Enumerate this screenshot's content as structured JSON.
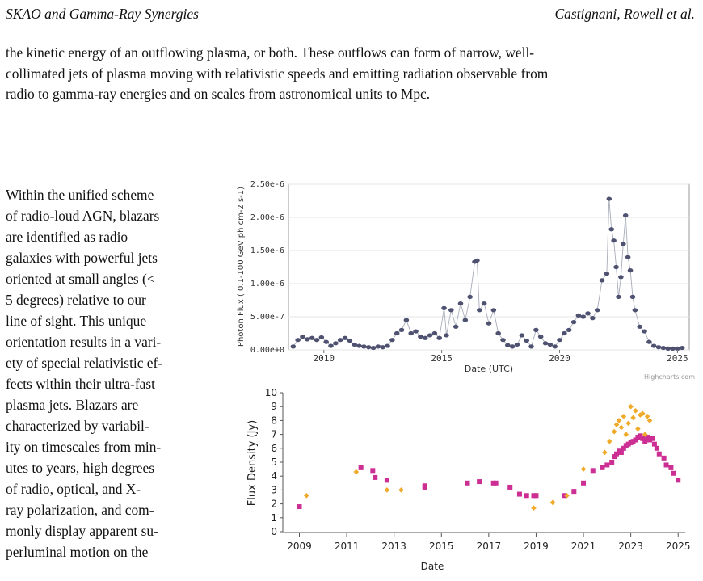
{
  "header": {
    "left": "SKAO and Gamma-Ray Synergies",
    "right": "Castignani, Rowell et al."
  },
  "top_paragraph": [
    "the kinetic energy of an outflowing plasma, or both.  These outflows can form of narrow, well-",
    "collimated jets of plasma moving with relativistic speeds and emitting radiation observable from",
    "radio to gamma-ray energies and on scales from astronomical units to Mpc."
  ],
  "left_column": [
    "Within the unified scheme",
    "of radio-loud AGN, blazars",
    "are   identified   as   radio",
    "galaxies with powerful jets",
    "oriented at small angles (<",
    "5 degrees) relative to our",
    "line of sight.  This unique",
    "orientation results in a vari-",
    "ety of special relativistic ef-",
    "fects within their ultra-fast",
    "plasma jets.   Blazars are",
    "characterized by variabil-",
    "ity on timescales from min-",
    "utes to years, high degrees",
    "of radio, optical, and X-",
    "ray polarization, and com-",
    "monly display apparent su-",
    "perluminal motion on the"
  ],
  "chart_data": [
    {
      "type": "line",
      "ylabel": "Photon Flux ( 0.1-100 GeV ph cm-2 s-1)",
      "xlabel": "Date (UTC)",
      "credit": "Highcharts.com",
      "xlim": [
        2008.5,
        2025.5
      ],
      "ylim": [
        0,
        2.5e-06
      ],
      "x_ticks": [
        "2010",
        "2015",
        "2020",
        "2025"
      ],
      "y_ticks": [
        "0.00e+0",
        "5.00e-7",
        "1.00e-6",
        "1.50e-6",
        "2.00e-6",
        "2.50e-6"
      ],
      "series": [
        {
          "x": [
            2008.7,
            2008.9,
            2009.1,
            2009.3,
            2009.5,
            2009.7,
            2009.9,
            2010.1,
            2010.3,
            2010.5,
            2010.7,
            2010.9,
            2011.1,
            2011.3,
            2011.5,
            2011.7,
            2011.9,
            2012.1,
            2012.3,
            2012.5,
            2012.7,
            2012.9,
            2013.1,
            2013.3,
            2013.5,
            2013.7,
            2013.9,
            2014.1,
            2014.3,
            2014.5,
            2014.7,
            2014.9,
            2015.1,
            2015.2,
            2015.4,
            2015.6,
            2015.8,
            2016.0,
            2016.2,
            2016.4,
            2016.5,
            2016.6,
            2016.8,
            2017.0,
            2017.2,
            2017.4,
            2017.6,
            2017.8,
            2018.0,
            2018.2,
            2018.4,
            2018.6,
            2018.8,
            2019.0,
            2019.2,
            2019.4,
            2019.6,
            2019.8,
            2020.0,
            2020.2,
            2020.4,
            2020.6,
            2020.8,
            2021.0,
            2021.2,
            2021.4,
            2021.6,
            2021.8,
            2022.0,
            2022.1,
            2022.2,
            2022.3,
            2022.4,
            2022.5,
            2022.6,
            2022.7,
            2022.8,
            2022.9,
            2023.0,
            2023.1,
            2023.2,
            2023.4,
            2023.6,
            2023.8,
            2024.0,
            2024.2,
            2024.4,
            2024.6,
            2024.8,
            2025.0,
            2025.2
          ],
          "values": [
            5e-08,
            1.5e-07,
            2e-07,
            1.6e-07,
            1.8e-07,
            1.5e-07,
            1.9e-07,
            1.2e-07,
            6e-08,
            1e-07,
            1.5e-07,
            1.8e-07,
            1.4e-07,
            8e-08,
            6e-08,
            5e-08,
            4e-08,
            3e-08,
            5e-08,
            4e-08,
            6e-08,
            1.5e-07,
            2.5e-07,
            3e-07,
            4.5e-07,
            2.5e-07,
            2.8e-07,
            2e-07,
            1.8e-07,
            2.2e-07,
            2.5e-07,
            1.8e-07,
            6.3e-07,
            2.2e-07,
            6e-07,
            3.5e-07,
            7e-07,
            4.5e-07,
            8e-07,
            1.33e-06,
            1.35e-06,
            6e-07,
            7e-07,
            4e-07,
            6e-07,
            2.5e-07,
            1.5e-07,
            7e-08,
            5e-08,
            8e-08,
            2.2e-07,
            1.4e-07,
            5e-08,
            3e-07,
            2e-07,
            1e-07,
            8e-08,
            5e-08,
            1.5e-07,
            2.5e-07,
            3e-07,
            4.2e-07,
            5.2e-07,
            5e-07,
            5.5e-07,
            4.8e-07,
            6e-07,
            1.05e-06,
            1.15e-06,
            2.28e-06,
            1.82e-06,
            1.65e-06,
            1.25e-06,
            8e-07,
            1.1e-06,
            1.6e-06,
            2.03e-06,
            1.4e-06,
            1.2e-06,
            8e-07,
            6e-07,
            3.5e-07,
            2.8e-07,
            1.2e-07,
            6e-08,
            4e-08,
            3e-08,
            2e-08,
            2e-08,
            2e-08,
            3e-08
          ]
        }
      ]
    },
    {
      "type": "scatter",
      "ylabel": "Flux Density (Jy)",
      "xlabel": "Date",
      "xlim": [
        2008.3,
        2025.3
      ],
      "ylim": [
        0,
        10
      ],
      "x_ticks": [
        "2009",
        "2011",
        "2013",
        "2015",
        "2017",
        "2019",
        "2021",
        "2023",
        "2025"
      ],
      "y_ticks": [
        "0",
        "1",
        "2",
        "3",
        "4",
        "5",
        "6",
        "7",
        "8",
        "9",
        "10"
      ],
      "series": [
        {
          "marker": "square",
          "color": "#cc2e93",
          "x": [
            2009.0,
            2011.6,
            2012.1,
            2012.2,
            2012.7,
            2014.3,
            2014.3,
            2016.1,
            2016.6,
            2017.2,
            2017.3,
            2017.9,
            2018.3,
            2018.6,
            2018.9,
            2019.0,
            2020.2,
            2020.6,
            2021.0,
            2021.4,
            2021.8,
            2022.0,
            2022.2,
            2022.3,
            2022.4,
            2022.5,
            2022.6,
            2022.7,
            2022.8,
            2022.9,
            2023.0,
            2023.1,
            2023.2,
            2023.3,
            2023.4,
            2023.5,
            2023.6,
            2023.7,
            2023.8,
            2023.9,
            2024.0,
            2024.1,
            2024.2,
            2024.4,
            2024.5,
            2024.7,
            2024.8,
            2025.0
          ],
          "y": [
            1.8,
            4.6,
            4.4,
            3.9,
            3.7,
            3.3,
            3.2,
            3.5,
            3.6,
            3.5,
            3.5,
            3.2,
            2.7,
            2.6,
            2.6,
            2.6,
            2.6,
            2.9,
            3.5,
            4.4,
            4.6,
            4.8,
            5.0,
            5.4,
            5.6,
            5.8,
            5.7,
            6.0,
            6.2,
            6.3,
            6.4,
            6.5,
            6.6,
            6.8,
            6.9,
            6.7,
            6.5,
            6.8,
            6.6,
            6.7,
            6.3,
            6.0,
            5.6,
            5.3,
            4.8,
            4.6,
            4.2,
            3.7
          ]
        },
        {
          "marker": "diamond",
          "color": "#f0aa2a",
          "x": [
            2009.3,
            2011.4,
            2012.7,
            2013.3,
            2018.9,
            2019.7,
            2020.3,
            2021.0,
            2021.9,
            2022.1,
            2022.3,
            2022.4,
            2022.5,
            2022.6,
            2022.7,
            2022.8,
            2022.9,
            2023.0,
            2023.1,
            2023.2,
            2023.3,
            2023.4,
            2023.5,
            2023.6,
            2023.7,
            2023.8
          ],
          "y": [
            2.6,
            4.3,
            3.0,
            3.0,
            1.7,
            2.1,
            2.6,
            4.5,
            5.7,
            6.5,
            7.2,
            7.7,
            8.0,
            7.5,
            8.3,
            7.0,
            7.8,
            9.0,
            8.2,
            8.7,
            7.4,
            8.4,
            8.5,
            7.0,
            8.3,
            8.0
          ]
        }
      ]
    }
  ]
}
